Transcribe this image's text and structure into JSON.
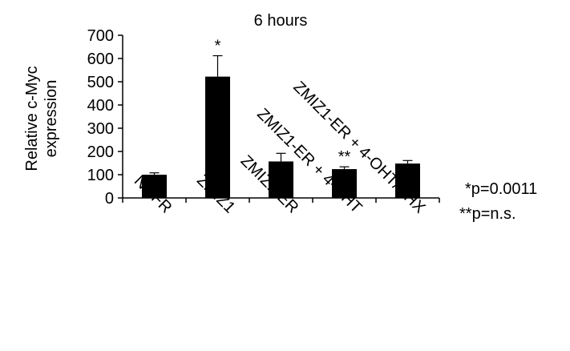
{
  "chart_data": {
    "type": "bar",
    "title": "6 hours",
    "ylabel_lines": [
      "Relative c-Myc",
      "expression"
    ],
    "xlabel": "",
    "categories": [
      "NGFR",
      "ZMIZ1",
      "ZMIZ1-ER",
      "ZMIZ1-ER + 4-OHT",
      "ZMIZ1-ER + 4-OHT/CHX"
    ],
    "values": [
      100,
      522,
      157,
      124,
      148
    ],
    "errors": [
      8,
      90,
      35,
      10,
      13
    ],
    "annotations": [
      "",
      "*",
      "",
      "**",
      ""
    ],
    "ylim": [
      0,
      700
    ],
    "yticks": [
      0,
      100,
      200,
      300,
      400,
      500,
      600,
      700
    ],
    "grid": false,
    "bar_color": "#000000",
    "notes": [
      "*p=0.0011",
      "**p=n.s."
    ]
  }
}
